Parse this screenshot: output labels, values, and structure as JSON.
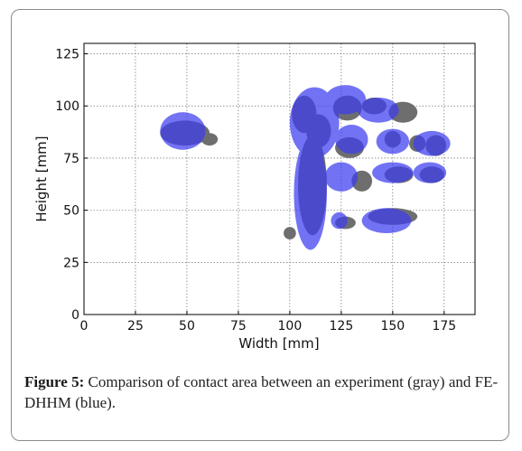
{
  "figure": {
    "label": "Figure 5:",
    "caption": "Comparison of contact area between an experiment (gray) and FE-DHHM (blue)."
  },
  "colors": {
    "experiment": "#6e6e6e",
    "simulation": "#3d3df0"
  },
  "chart_data": {
    "type": "heatmap",
    "title": "",
    "xlabel": "Width [mm]",
    "ylabel": "Height [mm]",
    "xlim": [
      0,
      190
    ],
    "ylim": [
      0,
      130
    ],
    "xticks": [
      0,
      25,
      50,
      75,
      100,
      125,
      150,
      175
    ],
    "yticks": [
      0,
      25,
      50,
      75,
      100,
      125
    ],
    "grid": true,
    "series": [
      {
        "name": "experiment (gray)",
        "regions": [
          {
            "cx": 49,
            "cy": 87,
            "rx": 12,
            "ry": 6
          },
          {
            "cx": 61,
            "cy": 84,
            "rx": 4,
            "ry": 3
          },
          {
            "cx": 107,
            "cy": 96,
            "rx": 6,
            "ry": 9
          },
          {
            "cx": 111,
            "cy": 62,
            "rx": 7,
            "ry": 24
          },
          {
            "cx": 100,
            "cy": 39,
            "rx": 3,
            "ry": 3
          },
          {
            "cx": 114,
            "cy": 88,
            "rx": 6,
            "ry": 8
          },
          {
            "cx": 128,
            "cy": 99,
            "rx": 7,
            "ry": 6
          },
          {
            "cx": 141,
            "cy": 100,
            "rx": 6,
            "ry": 4
          },
          {
            "cx": 155,
            "cy": 97,
            "rx": 7,
            "ry": 5
          },
          {
            "cx": 129,
            "cy": 80,
            "rx": 7,
            "ry": 5
          },
          {
            "cx": 150,
            "cy": 84,
            "rx": 4,
            "ry": 4
          },
          {
            "cx": 162,
            "cy": 82,
            "rx": 4,
            "ry": 4
          },
          {
            "cx": 171,
            "cy": 81,
            "rx": 5,
            "ry": 5
          },
          {
            "cx": 135,
            "cy": 64,
            "rx": 5,
            "ry": 5
          },
          {
            "cx": 153,
            "cy": 67,
            "rx": 7,
            "ry": 4
          },
          {
            "cx": 169,
            "cy": 67,
            "rx": 6,
            "ry": 4
          },
          {
            "cx": 127,
            "cy": 44,
            "rx": 5,
            "ry": 3
          },
          {
            "cx": 150,
            "cy": 47,
            "rx": 12,
            "ry": 4
          }
        ]
      },
      {
        "name": "FE-DHHM (blue)",
        "regions": [
          {
            "cx": 48,
            "cy": 88,
            "rx": 11,
            "ry": 9
          },
          {
            "cx": 112,
            "cy": 92,
            "rx": 12,
            "ry": 17
          },
          {
            "cx": 110,
            "cy": 58,
            "rx": 8,
            "ry": 27
          },
          {
            "cx": 127,
            "cy": 103,
            "rx": 10,
            "ry": 7
          },
          {
            "cx": 143,
            "cy": 98,
            "rx": 10,
            "ry": 6
          },
          {
            "cx": 130,
            "cy": 84,
            "rx": 8,
            "ry": 7
          },
          {
            "cx": 150,
            "cy": 83,
            "rx": 8,
            "ry": 6
          },
          {
            "cx": 169,
            "cy": 82,
            "rx": 9,
            "ry": 6
          },
          {
            "cx": 125,
            "cy": 66,
            "rx": 8,
            "ry": 7
          },
          {
            "cx": 150,
            "cy": 68,
            "rx": 10,
            "ry": 5
          },
          {
            "cx": 168,
            "cy": 68,
            "rx": 8,
            "ry": 5
          },
          {
            "cx": 124,
            "cy": 45,
            "rx": 4,
            "ry": 4
          },
          {
            "cx": 147,
            "cy": 45,
            "rx": 12,
            "ry": 6
          }
        ]
      }
    ]
  }
}
